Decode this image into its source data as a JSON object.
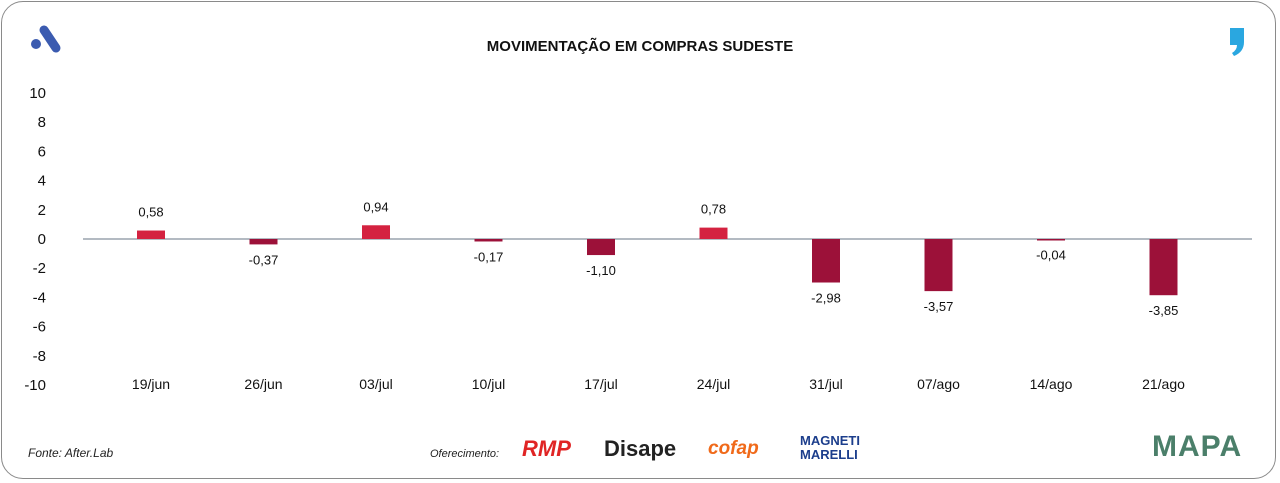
{
  "chart_data": {
    "type": "bar",
    "title": "MOVIMENTAÇÃO EM COMPRAS SUDESTE",
    "categories": [
      "19/jun",
      "26/jun",
      "03/jul",
      "10/jul",
      "17/jul",
      "24/jul",
      "31/jul",
      "07/ago",
      "14/ago",
      "21/ago"
    ],
    "values": [
      0.58,
      -0.37,
      0.94,
      -0.17,
      -1.1,
      0.78,
      -2.98,
      -3.57,
      -0.04,
      -3.85
    ],
    "data_labels": [
      "0,58",
      "-0,37",
      "0,94",
      "-0,17",
      "-1,10",
      "0,78",
      "-2,98",
      "-3,57",
      "-0,04",
      "-3,85"
    ],
    "yticks": [
      10,
      8,
      6,
      4,
      2,
      0,
      -2,
      -4,
      -6,
      -8,
      -10
    ],
    "ylim": [
      -10,
      10
    ],
    "xlabel": "",
    "ylabel": "",
    "grid": false,
    "colors": {
      "positive": "#d42240",
      "negative": "#9c1139"
    }
  },
  "footer": {
    "source": "Fonte: After.Lab",
    "offer": "Oferecimento:",
    "sponsors": [
      "RMP",
      "Disape",
      "cofap",
      "MAGNETI MARELLI"
    ],
    "brand": "MAPA"
  }
}
